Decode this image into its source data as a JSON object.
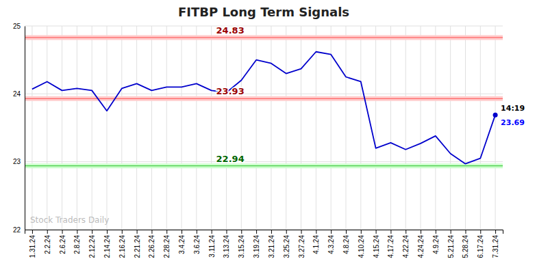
{
  "chart_data": {
    "type": "line",
    "title": "FITBP Long Term Signals",
    "categories": [
      "1.31.24",
      "2.2.24",
      "2.6.24",
      "2.8.24",
      "2.12.24",
      "2.14.24",
      "2.16.24",
      "2.21.24",
      "2.26.24",
      "2.28.24",
      "3.4.24",
      "3.6.24",
      "3.11.24",
      "3.13.24",
      "3.15.24",
      "3.19.24",
      "3.21.24",
      "3.25.24",
      "3.27.24",
      "4.1.24",
      "4.3.24",
      "4.8.24",
      "4.10.24",
      "4.15.24",
      "4.17.24",
      "4.22.24",
      "4.24.24",
      "4.9.24",
      "5.21.24",
      "5.28.24",
      "6.17.24",
      "7.31.24"
    ],
    "values": [
      24.07,
      24.18,
      24.05,
      24.08,
      24.05,
      23.75,
      24.08,
      24.15,
      24.05,
      24.1,
      24.1,
      24.15,
      24.05,
      24.02,
      24.2,
      24.5,
      24.45,
      24.3,
      24.37,
      24.62,
      24.58,
      24.25,
      24.18,
      23.2,
      23.28,
      23.18,
      23.27,
      23.38,
      23.12,
      22.97,
      23.05,
      23.69
    ],
    "color": "#0000cc",
    "ylim": [
      22,
      25
    ],
    "yticks": [
      22,
      23,
      24,
      25
    ],
    "grid": true,
    "reference_lines": [
      {
        "value": 24.83,
        "label": "24.83",
        "color": "#ff6666",
        "band_color": "#ffcccc",
        "label_color": "#990000"
      },
      {
        "value": 23.93,
        "label": "23.93",
        "color": "#ff6666",
        "band_color": "#ffcccc",
        "label_color": "#990000"
      },
      {
        "value": 22.94,
        "label": "22.94",
        "color": "#44cc44",
        "band_color": "#ccffcc",
        "label_color": "#006600"
      }
    ],
    "annotations": [
      {
        "text": "14:19",
        "color": "#000000"
      },
      {
        "text": "23.69",
        "value": 23.69,
        "color": "#0000ff"
      }
    ],
    "watermark": {
      "text": "Stock Traders Daily",
      "color": "#bbbbbb"
    }
  }
}
